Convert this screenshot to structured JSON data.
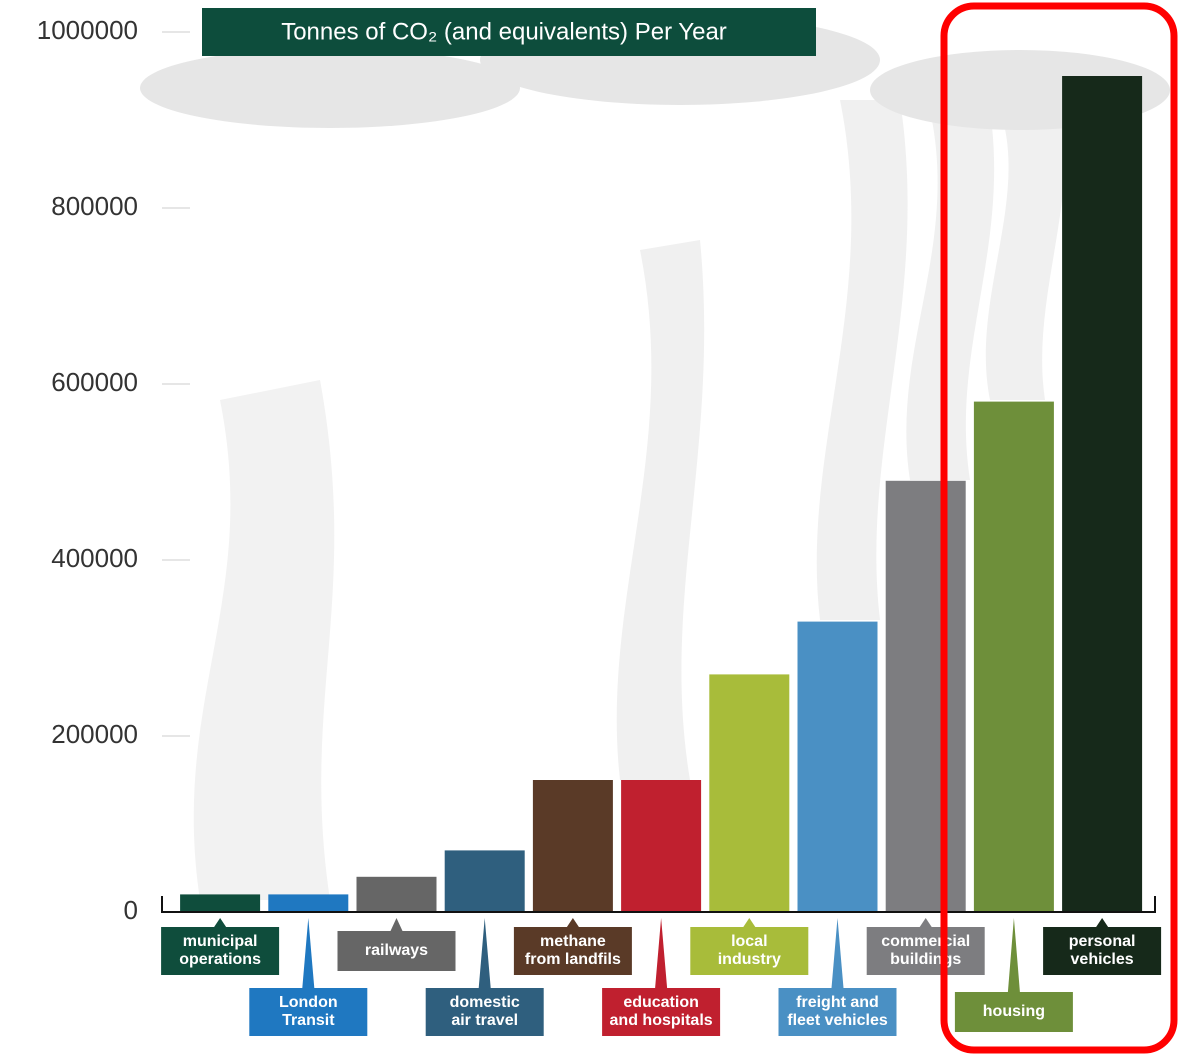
{
  "chart_data": {
    "type": "bar",
    "title": "Tonnes of CO₂ (and equivalents) Per Year",
    "categories": [
      "municipal\noperations",
      "London\nTransit",
      "railways",
      "domestic\nair travel",
      "methane\nfrom landfils",
      "education\nand hospitals",
      "local\nindustry",
      "freight and\nfleet vehicles",
      "commercial\nbuildings",
      "housing",
      "personal\nvehicles"
    ],
    "values": [
      20000,
      20000,
      40000,
      70000,
      150000,
      150000,
      270000,
      330000,
      490000,
      580000,
      950000
    ],
    "colors": [
      "#0f4d3c",
      "#1f78c1",
      "#666666",
      "#2f5f7e",
      "#5a3a27",
      "#c0202f",
      "#a8bc3a",
      "#4a90c4",
      "#7d7d80",
      "#6e8f3a",
      "#16291a"
    ],
    "ylim": [
      0,
      1000000
    ],
    "yticks": [
      0,
      200000,
      400000,
      600000,
      800000,
      1000000
    ],
    "grid": false
  }
}
